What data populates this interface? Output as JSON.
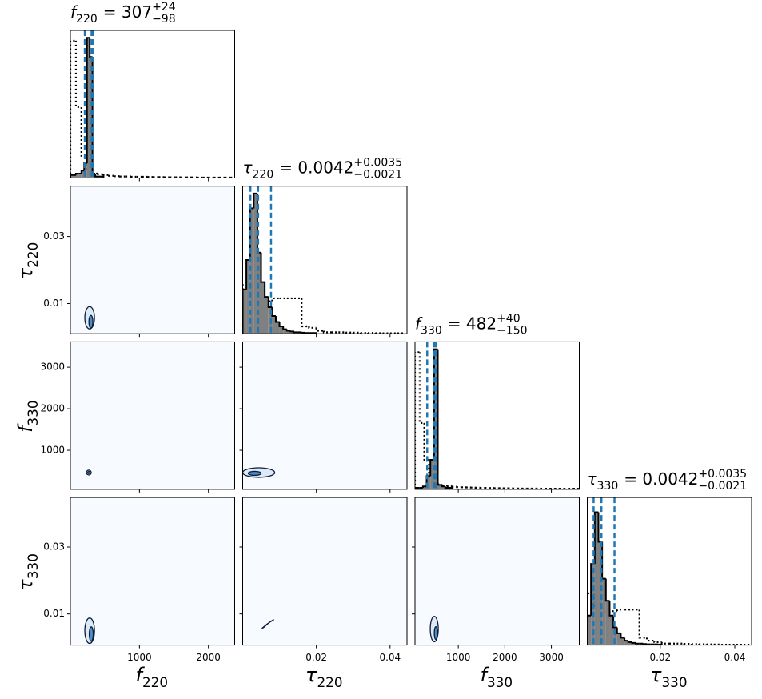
{
  "chart_data": {
    "type": "corner",
    "colors": {
      "posterior": "#808080",
      "edge": "#000000",
      "quantile": "#1f77b4",
      "background": "#f7fbff",
      "contour": "#0d1b3a",
      "contour_fills": [
        "#dceaf6",
        "#4a8cc4"
      ]
    },
    "hist_ylim": [
      0,
      100
    ],
    "parameters": [
      {
        "symbol": "f",
        "subscript": "220",
        "xlim": [
          0,
          2380
        ],
        "xticks": [
          1000,
          2000
        ],
        "title": {
          "text": "= 307",
          "upper": "+24",
          "lower": "−98"
        },
        "quantiles": [
          209,
          307,
          331
        ],
        "posterior": {
          "bins": [
            0,
            40,
            80,
            120,
            160,
            200,
            240,
            280,
            320,
            360,
            400,
            440,
            480
          ],
          "counts": [
            2,
            2,
            3,
            3,
            5,
            10,
            95,
            82,
            3,
            1,
            1,
            1
          ]
        },
        "prior": {
          "bins": [
            0,
            80,
            160,
            240,
            320,
            400,
            480,
            560,
            640,
            720,
            800,
            880,
            960,
            1040,
            1120,
            1200,
            1280,
            1360,
            1440,
            1520,
            1600,
            1680,
            1760,
            1840,
            1920,
            2000,
            2080,
            2160,
            2240,
            2320,
            2400
          ],
          "counts": [
            93,
            48,
            15,
            6,
            3,
            2.5,
            2,
            1.5,
            1.2,
            1,
            1,
            0.8,
            0.8,
            0.8,
            0.7,
            0.6,
            0.6,
            0.5,
            0.5,
            0.5,
            0.4,
            0.4,
            0.4,
            0.3,
            0.3,
            0.3,
            0.3,
            0.3,
            0.3,
            0.3
          ]
        }
      },
      {
        "symbol": "τ",
        "subscript": "220",
        "xlim": [
          0,
          0.0446
        ],
        "xticks": [
          0.02,
          0.04
        ],
        "ylim": [
          0.001,
          0.045
        ],
        "yticks": [
          0.01,
          0.03
        ],
        "title": {
          "text": "= 0.0042",
          "upper": "+0.0035",
          "lower": "−0.0021"
        },
        "quantiles": [
          0.0021,
          0.0042,
          0.0077
        ],
        "posterior": {
          "bins": [
            0,
            0.001,
            0.002,
            0.003,
            0.004,
            0.005,
            0.006,
            0.007,
            0.008,
            0.009,
            0.01,
            0.011,
            0.012,
            0.013,
            0.014,
            0.015,
            0.016,
            0.017,
            0.018,
            0.019,
            0.02
          ],
          "counts": [
            30,
            50,
            85,
            95,
            55,
            35,
            25,
            18,
            12,
            8,
            5,
            3,
            2,
            1.5,
            1,
            1,
            0.7,
            0.5,
            0.5,
            0.5
          ]
        },
        "prior": {
          "bins": [
            0,
            0.002,
            0.004,
            0.006,
            0.008,
            0.01,
            0.012,
            0.014,
            0.016,
            0.018,
            0.02,
            0.022,
            0.024,
            0.026,
            0.028,
            0.03,
            0.032,
            0.034,
            0.036,
            0.038,
            0.04,
            0.042,
            0.044
          ],
          "counts": [
            33,
            22,
            22,
            22,
            24,
            24,
            24,
            24,
            5,
            4,
            2,
            1,
            1,
            1,
            0.8,
            0.7,
            0.6,
            0.5,
            0.4,
            0.3,
            0.3,
            0.3
          ]
        },
        "pairs": [
          {
            "contours": [
              {
                "cx": 279,
                "cy": 0.00576,
                "rx": 70,
                "ry": 0.00333
              },
              {
                "cx": 297,
                "cy": 0.00457,
                "rx": 29,
                "ry": 0.0019
              }
            ]
          }
        ]
      },
      {
        "symbol": "f",
        "subscript": "330",
        "xlim": [
          70,
          3600
        ],
        "xticks": [
          1000,
          2000,
          3000
        ],
        "ylim": [
          60,
          3610
        ],
        "yticks": [
          1000,
          2000,
          3000
        ],
        "title": {
          "text": "= 482",
          "upper": "+40",
          "lower": "−150"
        },
        "quantiles": [
          332,
          482,
          522
        ],
        "posterior": {
          "bins": [
            80,
            160,
            240,
            320,
            400,
            480,
            560,
            640,
            720,
            800,
            880
          ],
          "counts": [
            1,
            1,
            2,
            9,
            20,
            95,
            3,
            2,
            1,
            1
          ]
        },
        "prior": {
          "bins": [
            70,
            170,
            270,
            370,
            470,
            570,
            670,
            770,
            870,
            970,
            1070,
            1170,
            1270,
            1370,
            1470,
            1570,
            1670,
            1770,
            1870,
            1970,
            2070,
            2170,
            2270,
            2370,
            2470,
            2570,
            2670,
            2770,
            2870,
            2970,
            3070,
            3170,
            3270,
            3370,
            3470,
            3570
          ],
          "counts": [
            93,
            45,
            20,
            8,
            4,
            3,
            2.5,
            2,
            1.8,
            1.5,
            1.4,
            1.3,
            1.2,
            1.1,
            1,
            1,
            0.9,
            0.8,
            0.8,
            0.7,
            0.7,
            0.6,
            0.6,
            0.5,
            0.5,
            0.5,
            0.5,
            0.4,
            0.4,
            0.4,
            0.4,
            0.4,
            0.4,
            0.4,
            0.4
          ]
        },
        "pairs": [
          {
            "contours": [
              {
                "cx": 267,
                "cy": 463,
                "rx": 35,
                "ry": 58
              },
              {
                "cx": 267,
                "cy": 463,
                "rx": 17,
                "ry": 25
              }
            ]
          },
          {
            "contours": [
              {
                "cx": 0.00435,
                "cy": 463,
                "rx": 0.00435,
                "ry": 115
              },
              {
                "cx": 0.00326,
                "cy": 444,
                "rx": 0.00174,
                "ry": 48
              }
            ]
          }
        ]
      },
      {
        "symbol": "τ",
        "subscript": "330",
        "xlim": [
          0.0004,
          0.0445
        ],
        "xticks": [
          0.02,
          0.04
        ],
        "ylim": [
          0.0007,
          0.0448
        ],
        "yticks": [
          0.01,
          0.03
        ],
        "title": {
          "text": "= 0.0042",
          "upper": "+0.0035",
          "lower": "−0.0021"
        },
        "quantiles": [
          0.0021,
          0.0042,
          0.0077
        ],
        "posterior": {
          "bins": [
            0.0004,
            0.0014,
            0.0024,
            0.0034,
            0.0044,
            0.0054,
            0.0064,
            0.0074,
            0.0084,
            0.0094,
            0.0104,
            0.0114,
            0.0124,
            0.0134,
            0.0144,
            0.0154,
            0.0164,
            0.0174,
            0.0184,
            0.0194,
            0.0204
          ],
          "counts": [
            20,
            55,
            90,
            70,
            45,
            30,
            20,
            12,
            8,
            5,
            3,
            2,
            1.5,
            1,
            1,
            0.7,
            0.5,
            0.5,
            0.5,
            0.4
          ]
        },
        "prior": {
          "bins": [
            0.0004,
            0.0024,
            0.0044,
            0.0064,
            0.0084,
            0.0104,
            0.0124,
            0.0144,
            0.0164,
            0.0184,
            0.0204,
            0.0224,
            0.0244,
            0.0264,
            0.0284,
            0.0304,
            0.0324,
            0.0344,
            0.0364,
            0.0384,
            0.0404,
            0.0424,
            0.0444
          ],
          "counts": [
            35,
            25,
            22,
            23,
            24,
            24,
            24,
            5,
            3,
            2,
            1,
            1,
            1,
            0.8,
            0.7,
            0.6,
            0.5,
            0.4,
            0.3,
            0.3,
            0.3,
            0.3
          ]
        },
        "pairs": [
          {
            "contours": [
              {
                "cx": 279,
                "cy": 0.005,
                "rx": 70,
                "ry": 0.0038
              },
              {
                "cx": 302,
                "cy": 0.004,
                "rx": 29,
                "ry": 0.00215
              }
            ]
          },
          {
            "contours": [
              {
                "x": [
                  0.00522,
                  0.00652,
                  0.00804,
                  0.00848,
                  0.00717,
                  0.00565
                ],
                "y": [
                  0.0057,
                  0.0069,
                  0.0081,
                  0.0083,
                  0.0074,
                  0.0059
                ]
              }
            ]
          },
          {
            "contours": [
              {
                "cx": 484,
                "cy": 0.0055,
                "rx": 86,
                "ry": 0.0038
              },
              {
                "cx": 518,
                "cy": 0.0043,
                "rx": 34,
                "ry": 0.0019
              }
            ]
          }
        ]
      }
    ]
  }
}
